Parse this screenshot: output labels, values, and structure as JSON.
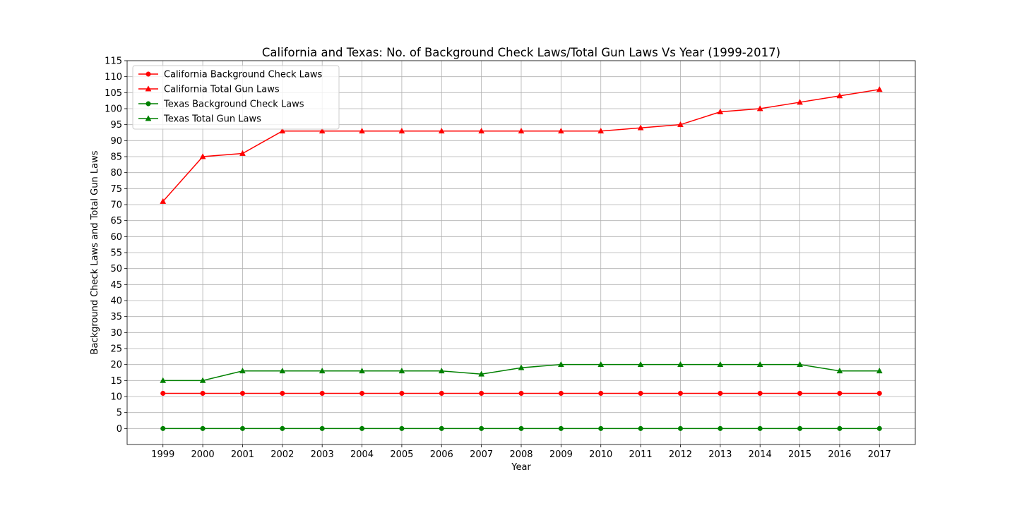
{
  "chart_data": {
    "type": "line",
    "title": "California and Texas: No. of Background Check Laws/Total Gun Laws Vs Year (1999-2017)",
    "xlabel": "Year",
    "ylabel": "Background Check Laws and Total Gun Laws",
    "x": [
      1999,
      2000,
      2001,
      2002,
      2003,
      2004,
      2005,
      2006,
      2007,
      2008,
      2009,
      2010,
      2011,
      2012,
      2013,
      2014,
      2015,
      2016,
      2017
    ],
    "y_ticks": [
      0,
      5,
      10,
      15,
      20,
      25,
      30,
      35,
      40,
      45,
      50,
      55,
      60,
      65,
      70,
      75,
      80,
      85,
      90,
      95,
      100,
      105,
      110,
      115
    ],
    "ylim": [
      -5,
      115
    ],
    "xlim": [
      1998.1,
      2017.9
    ],
    "grid": true,
    "legend_position": "upper-left",
    "series": [
      {
        "name": "California Background Check Laws",
        "color": "#ff0000",
        "marker": "circle",
        "values": [
          11,
          11,
          11,
          11,
          11,
          11,
          11,
          11,
          11,
          11,
          11,
          11,
          11,
          11,
          11,
          11,
          11,
          11,
          11
        ]
      },
      {
        "name": "California Total Gun Laws",
        "color": "#ff0000",
        "marker": "triangle",
        "values": [
          71,
          85,
          86,
          93,
          93,
          93,
          93,
          93,
          93,
          93,
          93,
          93,
          94,
          95,
          99,
          100,
          102,
          104,
          106
        ]
      },
      {
        "name": "Texas Background Check Laws",
        "color": "#008000",
        "marker": "circle",
        "values": [
          0,
          0,
          0,
          0,
          0,
          0,
          0,
          0,
          0,
          0,
          0,
          0,
          0,
          0,
          0,
          0,
          0,
          0,
          0
        ]
      },
      {
        "name": "Texas Total Gun Laws",
        "color": "#008000",
        "marker": "triangle",
        "values": [
          15,
          15,
          18,
          18,
          18,
          18,
          18,
          18,
          17,
          19,
          20,
          20,
          20,
          20,
          20,
          20,
          20,
          18,
          18
        ]
      }
    ]
  }
}
